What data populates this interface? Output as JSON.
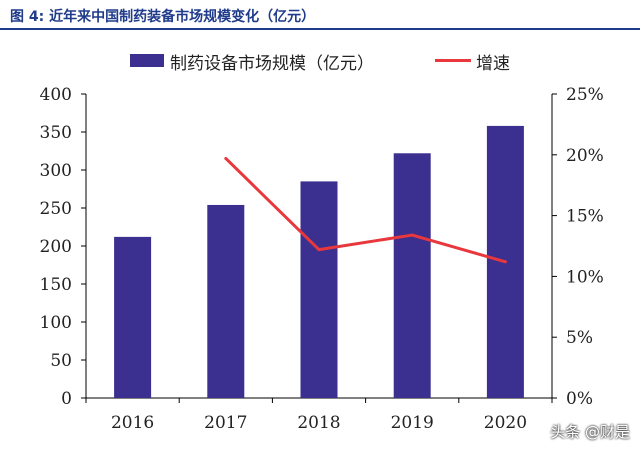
{
  "figure": {
    "title": "图 4:  近年来中国制药装备市场规模变化（亿元）"
  },
  "watermark": "头条 @财是",
  "colors": {
    "bar": "#3b2f8f",
    "line": "#e8383d",
    "title": "#1f3b8a"
  },
  "chart_data": {
    "type": "bar",
    "categories": [
      "2016",
      "2017",
      "2018",
      "2019",
      "2020"
    ],
    "series": [
      {
        "name": "制药设备市场规模（亿元）",
        "type": "bar",
        "axis": "left",
        "values": [
          212,
          254,
          285,
          322,
          358
        ]
      },
      {
        "name": "增速",
        "type": "line",
        "axis": "right",
        "values": [
          null,
          0.197,
          0.122,
          0.134,
          0.112
        ]
      }
    ],
    "y_left": {
      "range": [
        0,
        400
      ],
      "ticks": [
        0,
        50,
        100,
        150,
        200,
        250,
        300,
        350,
        400
      ],
      "tick_labels": [
        "0",
        "50",
        "100",
        "150",
        "200",
        "250",
        "300",
        "350",
        "400"
      ]
    },
    "y_right": {
      "range": [
        0,
        0.25
      ],
      "ticks": [
        0,
        0.05,
        0.1,
        0.15,
        0.2,
        0.25
      ],
      "tick_labels": [
        "0%",
        "5%",
        "10%",
        "15%",
        "20%",
        "25%"
      ]
    },
    "legend_position": "top",
    "grid": false
  }
}
